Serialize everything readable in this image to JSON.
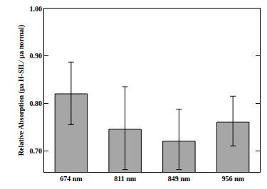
{
  "chart_data": {
    "type": "bar",
    "y_label": "Relative Absorption (μa H-SIL/ μa normal)",
    "categories": [
      "674 nm",
      "811 nm",
      "849 nm",
      "956 nm"
    ],
    "values": [
      0.82,
      0.745,
      0.72,
      0.76
    ],
    "error_plus": [
      0.067,
      0.09,
      0.067,
      0.055
    ],
    "error_minus": [
      0.065,
      0.085,
      0.06,
      0.05
    ],
    "color": "#a6a6a6",
    "ylim": [
      0.655,
      1.0
    ],
    "yticks": [
      {
        "value": 0.7,
        "label": "0.70"
      },
      {
        "value": 0.8,
        "label": "0.80"
      },
      {
        "value": 0.9,
        "label": "0.90"
      },
      {
        "value": 1.0,
        "label": "1.00"
      }
    ],
    "grid": false
  }
}
